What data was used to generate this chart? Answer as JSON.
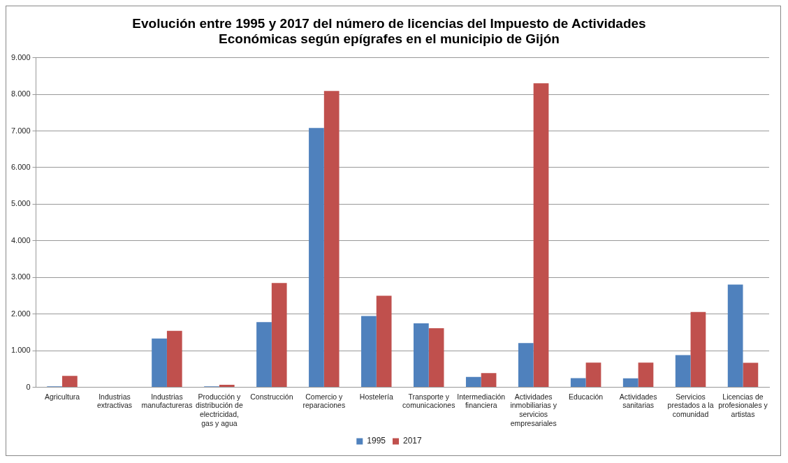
{
  "chart_data": {
    "type": "bar",
    "title": "Evolución entre 1995 y 2017 del número de licencias del Impuesto de Actividades Económicas según epígrafes en el municipio de Gijón",
    "categories": [
      "Agricultura",
      "Industrias extractivas",
      "Industrias manufactureras",
      "Producción y distribución de electricidad, gas y agua",
      "Construcción",
      "Comercio y reparaciones",
      "Hostelería",
      "Transporte y comunicaciones",
      "Intermediación financiera",
      "Actividades inmobiliarias y servicios empresariales",
      "Educación",
      "Actividades sanitarias",
      "Servicios prestados a la comunidad",
      "Licencias de profesionales y artistas"
    ],
    "series": [
      {
        "name": "1995",
        "color": "#4f81bd",
        "values": [
          25,
          0,
          1330,
          25,
          1780,
          7080,
          1945,
          1745,
          285,
          1210,
          250,
          245,
          880,
          2805
        ]
      },
      {
        "name": "2017",
        "color": "#c0504d",
        "values": [
          310,
          0,
          1540,
          70,
          2850,
          8090,
          2500,
          1615,
          390,
          8300,
          675,
          675,
          2055,
          670
        ]
      }
    ],
    "ylim": [
      0,
      9000
    ],
    "yticks": [
      {
        "value": 0,
        "label": "0"
      },
      {
        "value": 1000,
        "label": "1.000"
      },
      {
        "value": 2000,
        "label": "2.000"
      },
      {
        "value": 3000,
        "label": "3.000"
      },
      {
        "value": 4000,
        "label": "4.000"
      },
      {
        "value": 5000,
        "label": "5.000"
      },
      {
        "value": 6000,
        "label": "6.000"
      },
      {
        "value": 7000,
        "label": "7.000"
      },
      {
        "value": 8000,
        "label": "8.000"
      },
      {
        "value": 9000,
        "label": "9.000"
      }
    ],
    "grid": "y",
    "legend": "bottom"
  }
}
